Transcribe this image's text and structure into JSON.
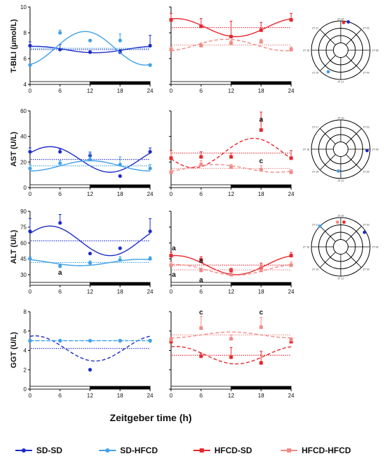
{
  "figure": {
    "xlabel": "Zeitgeber time (h)",
    "x_ticks": [
      "0",
      "6",
      "12",
      "18",
      "24"
    ],
    "colors": {
      "SD-SD": "#1c2bc8",
      "SD-HFCD": "#3fa0e8",
      "HFCD-SD": "#e8262c",
      "HFCD-HFCD": "#f08a86"
    }
  },
  "legend": [
    {
      "name": "SD-SD",
      "color": "#1c2bc8"
    },
    {
      "name": "SD-HFCD",
      "color": "#3fa0e8"
    },
    {
      "name": "HFCD-SD",
      "color": "#e8262c"
    },
    {
      "name": "HFCD-HFCD",
      "color": "#f08a86"
    }
  ],
  "rows": [
    {
      "ylabel": "T-BILI (μmol/L)",
      "yticks": [
        "4",
        "6",
        "8",
        "10"
      ]
    },
    {
      "ylabel": "AST (U/L)",
      "yticks": [
        "0",
        "20",
        "40",
        "60"
      ]
    },
    {
      "ylabel": "ALT (U/L)",
      "yticks": [
        "30",
        "45",
        "60",
        "75",
        "90"
      ]
    },
    {
      "ylabel": "GGT (U/L)",
      "yticks": [
        "0",
        "2",
        "4",
        "6",
        "8"
      ]
    }
  ],
  "rose_labels": [
    "ZT 00",
    "ZT 03",
    "ZT 06",
    "ZT 09",
    "ZT 12",
    "ZT 15",
    "ZT 18",
    "ZT 21"
  ],
  "chart_data": [
    {
      "type": "scatter",
      "panel": "T-BILI SD",
      "ylabel": "T-BILI (μmol/L)",
      "xlabel": "Zeitgeber time (h)",
      "ylim": [
        4,
        10
      ],
      "xlim": [
        0,
        24
      ],
      "x": [
        0,
        6,
        12,
        18,
        24
      ],
      "series": [
        {
          "name": "SD-SD",
          "color": "#1c2bc8",
          "values": [
            7.0,
            6.7,
            6.5,
            6.5,
            7.0
          ],
          "errors": [
            0.3,
            0.4,
            0.1,
            0.2,
            0.8
          ],
          "mesor": 6.7,
          "amplitude": 0.25,
          "peak": 1,
          "fit": "solid",
          "mesor_style": "dotted"
        },
        {
          "name": "SD-HFCD",
          "color": "#3fa0e8",
          "values": [
            5.5,
            8.0,
            7.4,
            7.4,
            5.5
          ],
          "errors": [
            0.0,
            0.2,
            0.0,
            0.5,
            0.0
          ],
          "mesor": 6.8,
          "amplitude": 1.3,
          "peak": 11,
          "fit": "solid",
          "mesor_style": "dotted"
        }
      ]
    },
    {
      "type": "scatter",
      "panel": "T-BILI HFCD",
      "ylabel": "T-BILI (μmol/L)",
      "xlabel": "Zeitgeber time (h)",
      "ylim": [
        4,
        10
      ],
      "xlim": [
        0,
        24
      ],
      "x": [
        0,
        6,
        12,
        18,
        24
      ],
      "series": [
        {
          "name": "HFCD-SD",
          "color": "#e8262c",
          "values": [
            9.0,
            8.5,
            7.7,
            8.2,
            9.0
          ],
          "errors": [
            0.5,
            0.6,
            1.2,
            0.6,
            0.5
          ],
          "mesor": 8.4,
          "amplitude": 0.7,
          "peak": 1,
          "fit": "solid",
          "mesor_style": "dotted"
        },
        {
          "name": "HFCD-HFCD",
          "color": "#f08a86",
          "values": [
            6.7,
            7.0,
            7.2,
            7.3,
            6.7
          ],
          "errors": [
            0.2,
            0.2,
            0.2,
            0.2,
            0.2
          ],
          "mesor": 7.05,
          "amplitude": 0.45,
          "peak": 11,
          "fit": "dashed",
          "mesor_style": "dotted"
        }
      ]
    },
    {
      "type": "scatter",
      "panel": "AST SD",
      "ylabel": "AST (U/L)",
      "xlabel": "Zeitgeber time (h)",
      "ylim": [
        0,
        60
      ],
      "xlim": [
        0,
        24
      ],
      "x": [
        0,
        6,
        12,
        18,
        24
      ],
      "series": [
        {
          "name": "SD-SD",
          "color": "#1c2bc8",
          "values": [
            28,
            28,
            25,
            9,
            28
          ],
          "errors": [
            3,
            2,
            2,
            0,
            3
          ],
          "mesor": 22,
          "amplitude": 10,
          "peak": 4,
          "fit": "solid",
          "mesor_style": "dotted"
        },
        {
          "name": "SD-HFCD",
          "color": "#3fa0e8",
          "values": [
            15,
            19,
            22,
            18,
            15
          ],
          "errors": [
            3,
            2,
            6,
            6,
            3
          ],
          "mesor": 17,
          "amplitude": 4,
          "peak": 12,
          "fit": "solid",
          "mesor_style": "dotted"
        }
      ]
    },
    {
      "type": "scatter",
      "panel": "AST HFCD",
      "ylabel": "AST (U/L)",
      "xlabel": "Zeitgeber time (h)",
      "ylim": [
        0,
        60
      ],
      "xlim": [
        0,
        24
      ],
      "x": [
        0,
        6,
        12,
        18,
        24
      ],
      "series": [
        {
          "name": "HFCD-SD",
          "color": "#e8262c",
          "values": [
            23,
            24,
            24,
            45,
            23
          ],
          "errors": [
            6,
            4,
            3,
            14,
            6
          ],
          "mesor": 27,
          "amplitude": 11.5,
          "peak": 16.5,
          "fit": "dashed",
          "mesor_style": "dotted"
        },
        {
          "name": "HFCD-HFCD",
          "color": "#f08a86",
          "values": [
            12,
            18,
            16,
            14,
            12
          ],
          "errors": [
            2,
            3,
            2,
            3,
            2
          ],
          "mesor": 15,
          "amplitude": 3,
          "peak": 9,
          "fit": "dashed",
          "mesor_style": "dotted"
        }
      ],
      "annotations": [
        {
          "text": "a",
          "x": 18,
          "y": 51.5
        },
        {
          "text": "c",
          "x": 18,
          "y": 19
        }
      ]
    },
    {
      "type": "scatter",
      "panel": "ALT SD",
      "ylabel": "ALT (U/L)",
      "xlabel": "Zeitgeber time (h)",
      "ylim": [
        20,
        90
      ],
      "xlim": [
        0,
        24
      ],
      "x": [
        0,
        6,
        12,
        18,
        24
      ],
      "series": [
        {
          "name": "SD-SD",
          "color": "#1c2bc8",
          "values": [
            71,
            79,
            50,
            55,
            71
          ],
          "errors": [
            12,
            8,
            0,
            0,
            12
          ],
          "mesor": 62,
          "amplitude": 14,
          "peak": 4,
          "fit": "solid",
          "mesor_style": "dotted"
        },
        {
          "name": "SD-HFCD",
          "color": "#3fa0e8",
          "values": [
            45,
            38,
            41,
            44,
            45
          ],
          "errors": [
            2,
            2,
            2,
            3,
            2
          ],
          "mesor": 41.5,
          "amplitude": 3,
          "peak": 22,
          "fit": "solid",
          "mesor_style": "dotted"
        }
      ],
      "annotations": [
        {
          "text": "a",
          "x": 6,
          "y": 30
        }
      ]
    },
    {
      "type": "scatter",
      "panel": "ALT HFCD",
      "ylabel": "ALT (U/L)",
      "xlabel": "Zeitgeber time (h)",
      "ylim": [
        20,
        90
      ],
      "xlim": [
        0,
        24
      ],
      "x": [
        0,
        6,
        12,
        18,
        24
      ],
      "series": [
        {
          "name": "HFCD-SD",
          "color": "#e8262c",
          "values": [
            48,
            44,
            34,
            36,
            48
          ],
          "errors": [
            3,
            3,
            2,
            5,
            3
          ],
          "mesor": 39,
          "amplitude": 9,
          "peak": 1,
          "fit": "solid",
          "mesor_style": "dotted"
        },
        {
          "name": "HFCD-HFCD",
          "color": "#f08a86",
          "values": [
            39,
            34,
            30,
            34,
            39
          ],
          "errors": [
            3,
            2,
            2,
            3,
            3
          ],
          "mesor": 34.5,
          "amplitude": 5,
          "peak": 1,
          "fit": "dashed",
          "mesor_style": "dotted"
        }
      ],
      "annotations": [
        {
          "text": "a",
          "x": 0,
          "y": 53
        },
        {
          "text": "a",
          "x": 0,
          "y": 28
        },
        {
          "text": "a",
          "x": 6,
          "y": 41
        },
        {
          "text": "a",
          "x": 6,
          "y": 23
        }
      ]
    },
    {
      "type": "scatter",
      "panel": "GGT SD",
      "ylabel": "GGT (U/L)",
      "xlabel": "Zeitgeber time (h)",
      "ylim": [
        0,
        8
      ],
      "xlim": [
        0,
        24
      ],
      "x": [
        0,
        6,
        12,
        18,
        24
      ],
      "series": [
        {
          "name": "SD-SD",
          "color": "#1c2bc8",
          "values": [
            5.0,
            5.0,
            2.0,
            5.0,
            5.0
          ],
          "errors": [
            0,
            0,
            0,
            0,
            0
          ],
          "mesor": 4.2,
          "amplitude": 1.3,
          "peak": 1,
          "fit": "dashed",
          "mesor_style": "dotted"
        },
        {
          "name": "SD-HFCD",
          "color": "#3fa0e8",
          "values": [
            5.0,
            5.0,
            5.0,
            5.0,
            5.0
          ],
          "errors": [
            0,
            0,
            0,
            0,
            0
          ],
          "mesor": 5.0,
          "amplitude": 0.0,
          "peak": 0,
          "fit": "dashed",
          "mesor_style": "dotted"
        }
      ]
    },
    {
      "type": "scatter",
      "panel": "GGT HFCD",
      "ylabel": "GGT (U/L)",
      "xlabel": "Zeitgeber time (h)",
      "ylim": [
        0,
        8
      ],
      "xlim": [
        0,
        24
      ],
      "x": [
        0,
        6,
        12,
        18,
        24
      ],
      "series": [
        {
          "name": "HFCD-SD",
          "color": "#e8262c",
          "values": [
            4.9,
            3.4,
            3.3,
            2.7,
            4.9
          ],
          "errors": [
            0.3,
            0.3,
            1.0,
            1.2,
            0.3
          ],
          "mesor": 3.5,
          "amplitude": 0.9,
          "peak": 1,
          "fit": "dashed",
          "mesor_style": "dotted"
        },
        {
          "name": "HFCD-HFCD",
          "color": "#f08a86",
          "values": [
            5.1,
            6.3,
            5.2,
            6.4,
            5.1
          ],
          "errors": [
            0.2,
            1.2,
            0.4,
            1.0,
            0.2
          ],
          "mesor": 5.6,
          "amplitude": 0.3,
          "peak": 12,
          "fit": "dashed",
          "mesor_style": "dotted"
        }
      ],
      "annotations": [
        {
          "text": "c",
          "x": 6,
          "y": 7.7
        },
        {
          "text": "c",
          "x": 18,
          "y": 7.7
        }
      ]
    }
  ],
  "rose_data": [
    {
      "panel": "T-BILI rose",
      "points": [
        {
          "series": "SD-SD",
          "zt": 1,
          "r": 1.0,
          "color": "#1c2bc8"
        },
        {
          "series": "HFCD-SD",
          "zt": 0.4,
          "r": 0.95,
          "color": "#e8262c"
        },
        {
          "series": "SD-HFCD",
          "zt": 14,
          "r": 0.85,
          "color": "#3fa0e8"
        }
      ]
    },
    {
      "panel": "AST rose",
      "points": [
        {
          "series": "SD-SD",
          "zt": 6.2,
          "r": 0.9,
          "color": "#1c2bc8"
        },
        {
          "series": "SD-HFCD",
          "zt": 12.4,
          "r": 0.75,
          "color": "#3fa0e8"
        }
      ]
    },
    {
      "panel": "ALT rose",
      "points": [
        {
          "series": "HFCD-SD",
          "zt": 0.5,
          "r": 0.85,
          "color": "#e8262c"
        },
        {
          "series": "SD-SD",
          "zt": 3.9,
          "r": 0.95,
          "color": "#1c2bc8"
        },
        {
          "series": "SD-HFCD",
          "zt": 21,
          "r": 1.0,
          "color": "#3fa0e8"
        },
        {
          "series": "HFCD-HFCD",
          "zt": 23.5,
          "r": 0.85,
          "color": "#f08a86"
        }
      ]
    }
  ]
}
